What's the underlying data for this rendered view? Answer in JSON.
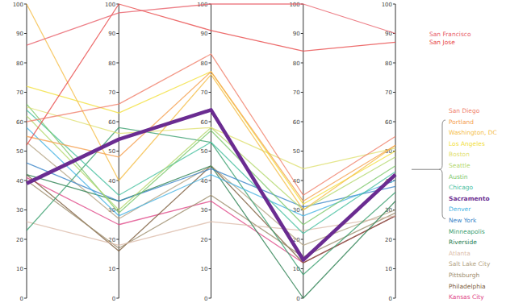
{
  "chart_data": {
    "type": "parallel",
    "categories": [
      null,
      null,
      null,
      null,
      null
    ],
    "ylim": [
      0,
      100
    ],
    "yticks": [
      0,
      10,
      20,
      30,
      40,
      50,
      60,
      70,
      80,
      90,
      100
    ],
    "series": [
      {
        "name": "San Francisco",
        "color": "#e8606a",
        "values": [
          86,
          97,
          100,
          100,
          90
        ]
      },
      {
        "name": "San Jose",
        "color": "#e84a4a",
        "values": [
          52,
          100,
          91,
          84,
          87
        ]
      },
      {
        "name": "San Diego",
        "color": "#f0806a",
        "values": [
          60,
          66,
          83,
          35,
          55
        ]
      },
      {
        "name": "Portland",
        "color": "#f5a050",
        "values": [
          55,
          48,
          77,
          33,
          52
        ]
      },
      {
        "name": "Washington, DC",
        "color": "#f5be48",
        "values": [
          100,
          40,
          76,
          30,
          52
        ]
      },
      {
        "name": "Los Angeles",
        "color": "#f2e03c",
        "values": [
          72,
          63,
          77,
          32,
          50
        ]
      },
      {
        "name": "Boston",
        "color": "#dfe070",
        "values": [
          65,
          56,
          58,
          44,
          51
        ]
      },
      {
        "name": "Seattle",
        "color": "#b4d86e",
        "values": [
          62,
          30,
          58,
          30,
          48
        ]
      },
      {
        "name": "Austin",
        "color": "#7cc86c",
        "values": [
          66,
          29,
          57,
          25,
          45
        ]
      },
      {
        "name": "Chicago",
        "color": "#48c0a0",
        "values": [
          64,
          35,
          53,
          22,
          43
        ]
      },
      {
        "name": "Sacramento",
        "color": "#6a2c91",
        "values": [
          39,
          54,
          64,
          13,
          42
        ]
      },
      {
        "name": "Denver",
        "color": "#48b4e4",
        "values": [
          58,
          28,
          42,
          28,
          40
        ]
      },
      {
        "name": "New York",
        "color": "#3a84c8",
        "values": [
          46,
          33,
          44,
          31,
          38
        ]
      },
      {
        "name": "Minneapolis",
        "color": "#3ca070",
        "values": [
          23,
          58,
          53,
          8,
          36
        ]
      },
      {
        "name": "Riverside",
        "color": "#2a8050",
        "values": [
          42,
          33,
          45,
          0,
          33
        ]
      },
      {
        "name": "Atlanta",
        "color": "#dcbcaa",
        "values": [
          26,
          18,
          26,
          23,
          28
        ]
      },
      {
        "name": "Salt Lake City",
        "color": "#b4a484",
        "values": [
          53,
          27,
          45,
          18,
          30
        ]
      },
      {
        "name": "Pittsburgh",
        "color": "#9c8c6c",
        "values": [
          40,
          17,
          35,
          14,
          29
        ]
      },
      {
        "name": "Philadelphia",
        "color": "#7c5c3c",
        "values": [
          42,
          16,
          45,
          12,
          28
        ]
      },
      {
        "name": "Kansas City",
        "color": "#e04888",
        "values": [
          41,
          25,
          33,
          12,
          28
        ]
      }
    ]
  }
}
